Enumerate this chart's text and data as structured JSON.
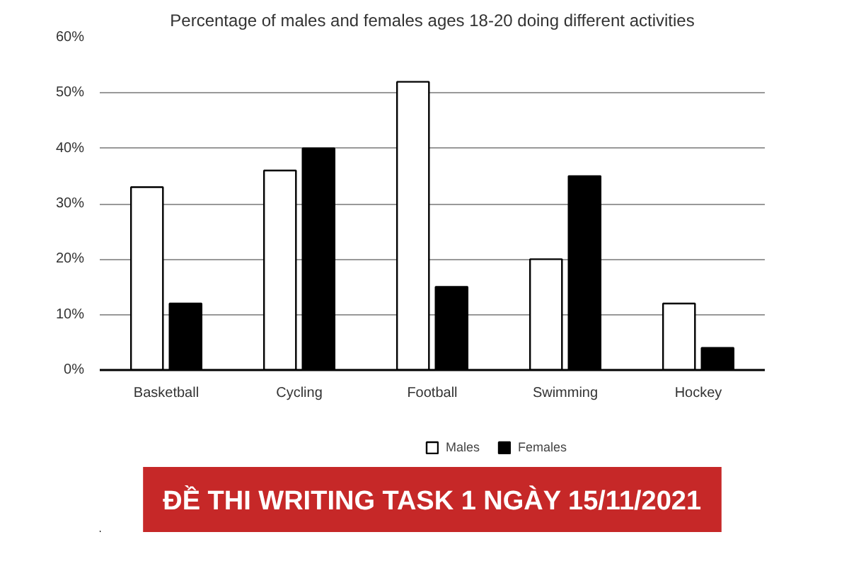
{
  "chart_data": {
    "type": "bar",
    "title": "Percentage of males and females ages 18-20 doing different activities",
    "categories": [
      "Basketball",
      "Cycling",
      "Football",
      "Swimming",
      "Hockey"
    ],
    "series": [
      {
        "name": "Males",
        "color": "#ffffff",
        "values": [
          33,
          36,
          52,
          20,
          12
        ]
      },
      {
        "name": "Females",
        "color": "#000000",
        "values": [
          12,
          40,
          15,
          35,
          4
        ]
      }
    ],
    "ylim": [
      0,
      60
    ],
    "yticks": [
      {
        "value": 0,
        "label": "0%"
      },
      {
        "value": 10,
        "label": "10%"
      },
      {
        "value": 20,
        "label": "20%"
      },
      {
        "value": 30,
        "label": "30%"
      },
      {
        "value": 40,
        "label": "40%"
      },
      {
        "value": 50,
        "label": "50%"
      },
      {
        "value": 60,
        "label": "60%"
      }
    ],
    "grid": "y",
    "legend": "bottom",
    "annotations": [
      "ĐỀ THI WRITING TASK 1 NGÀY 15/11/2021"
    ]
  }
}
